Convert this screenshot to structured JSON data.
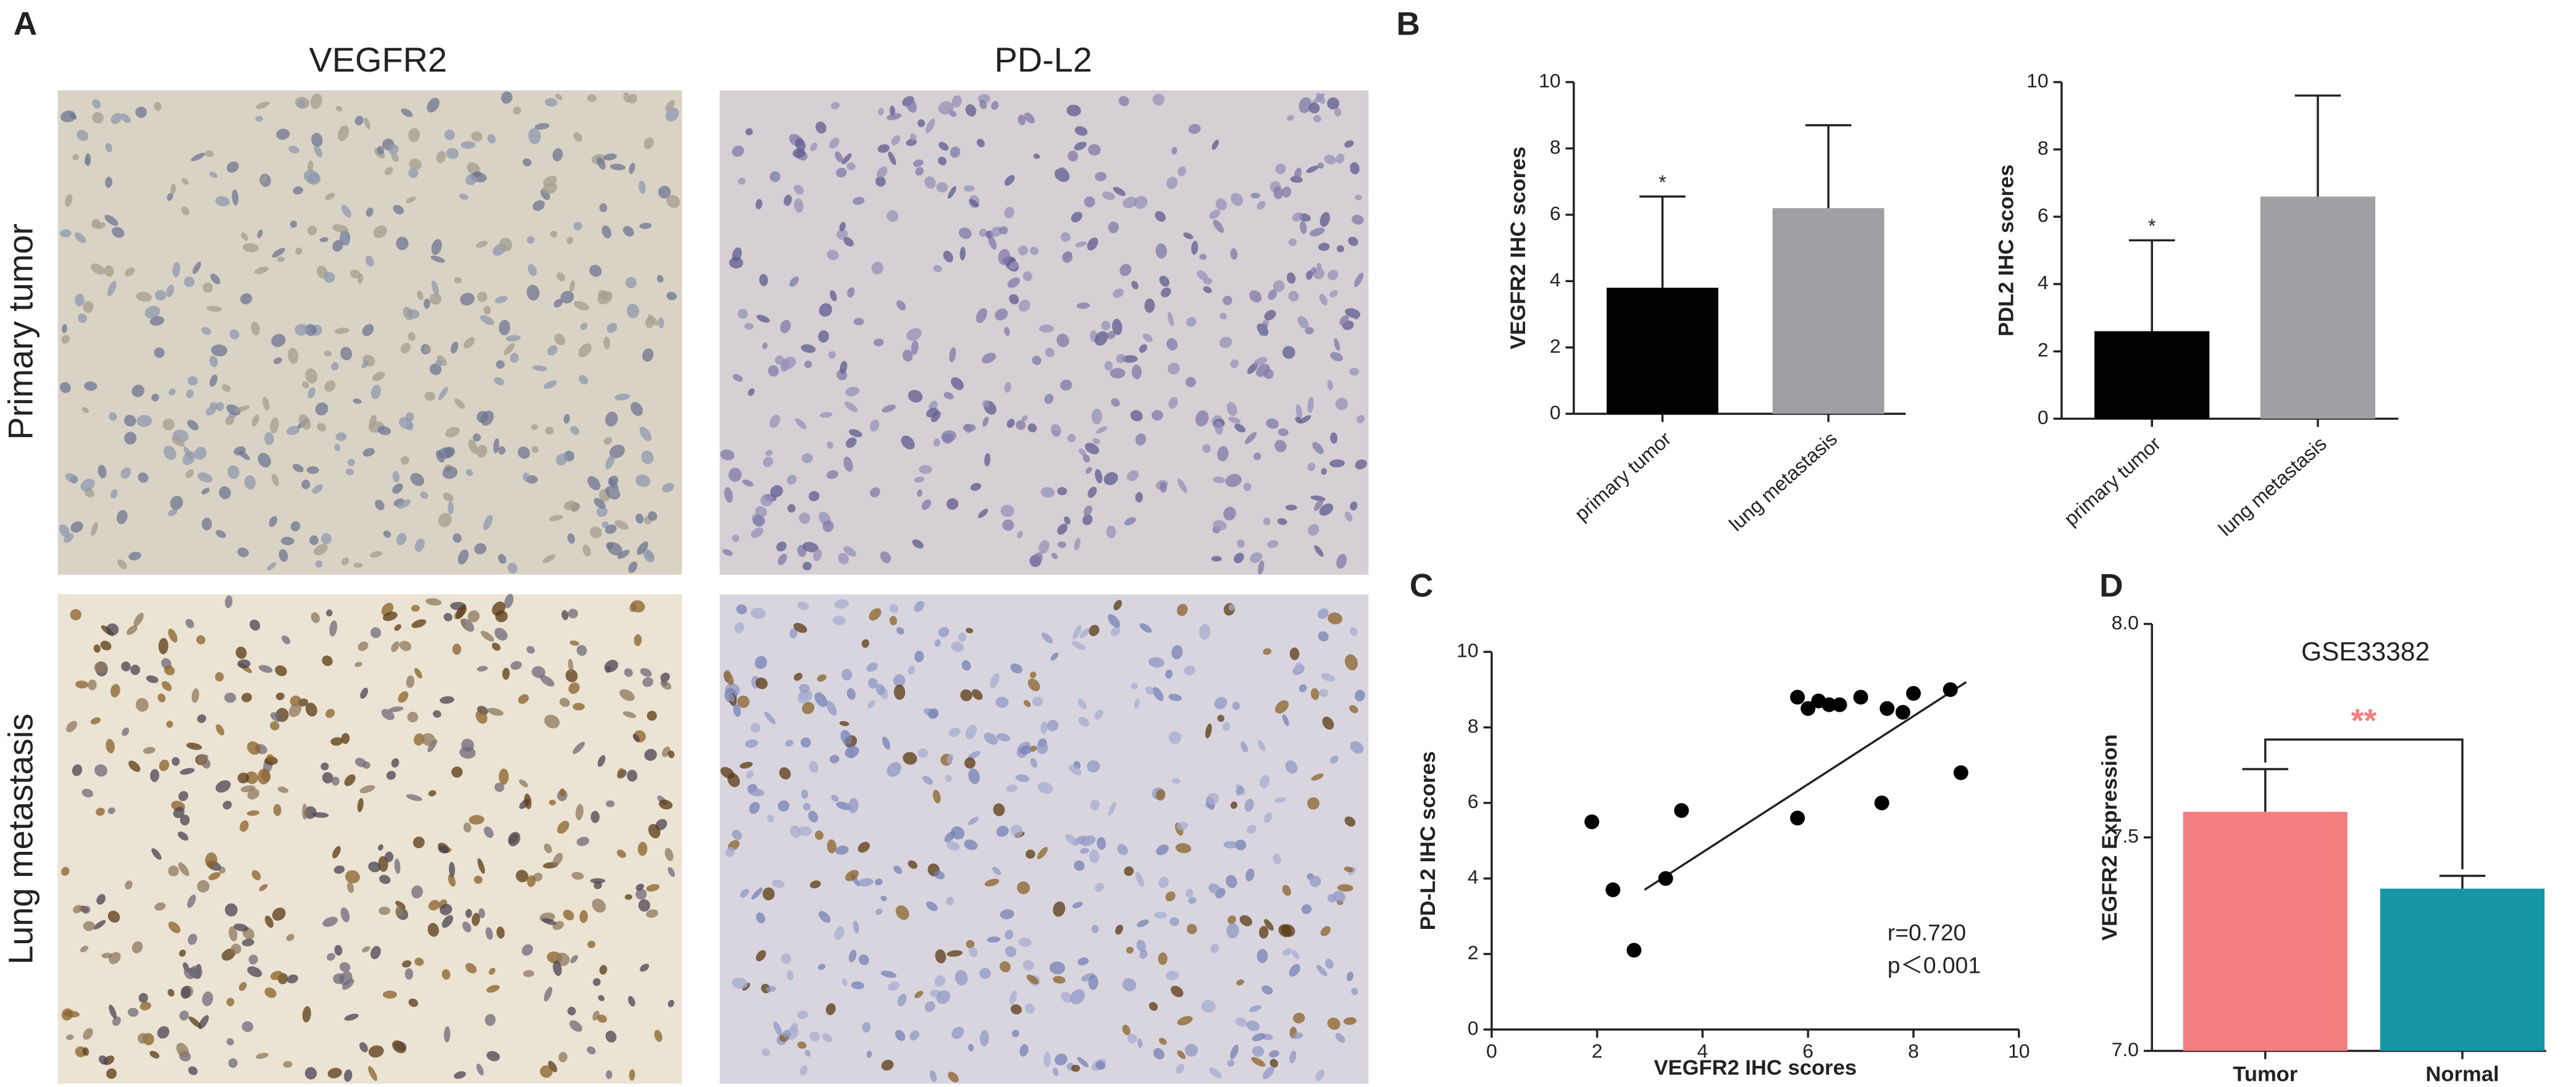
{
  "panel_labels": [
    "A",
    "B",
    "C",
    "D"
  ],
  "micrographs": {
    "columns": [
      "VEGFR2",
      "PD-L2"
    ],
    "rows": [
      "Primary tumor",
      "Lung metastasis"
    ]
  },
  "chart_data": [
    {
      "type": "bar",
      "y_label": "VEGFR2 IHC scores",
      "categories": [
        "primary tumor",
        "lung metastasis"
      ],
      "values": [
        3.8,
        6.2
      ],
      "errors": [
        2.75,
        2.5
      ],
      "colors": [
        "#000000",
        "#a0a0a4"
      ],
      "significance": [
        "*",
        null
      ],
      "ylim": [
        0,
        10
      ],
      "yticks": [
        0,
        2,
        4,
        6,
        8,
        10
      ]
    },
    {
      "type": "bar",
      "y_label": "PDL2 IHC scores",
      "categories": [
        "primary tumor",
        "lung metastasis"
      ],
      "values": [
        2.6,
        6.6
      ],
      "errors": [
        2.7,
        3.0
      ],
      "colors": [
        "#000000",
        "#a0a0a4"
      ],
      "significance": [
        "*",
        null
      ],
      "ylim": [
        0,
        10
      ],
      "yticks": [
        0,
        2,
        4,
        6,
        8,
        10
      ]
    },
    {
      "type": "scatter",
      "x_label": "VEGFR2 IHC scores",
      "y_label": "PD-L2 IHC scores",
      "x": [
        1.9,
        2.3,
        2.7,
        3.3,
        3.6,
        5.8,
        5.8,
        6.0,
        6.2,
        6.4,
        6.6,
        7.0,
        7.4,
        7.5,
        7.8,
        8.0,
        8.7,
        8.9
      ],
      "y": [
        5.5,
        3.7,
        2.1,
        4.0,
        5.8,
        5.6,
        8.8,
        8.5,
        8.7,
        8.6,
        8.6,
        8.8,
        6.0,
        8.5,
        8.4,
        8.9,
        9.0,
        6.8
      ],
      "color": "#000000",
      "fit_line": {
        "x": [
          2.9,
          9.0
        ],
        "y": [
          3.7,
          9.2
        ]
      },
      "annotations": [
        "r=0.720",
        "p＜0.001"
      ],
      "xlim": [
        0,
        10
      ],
      "xticks": [
        0,
        2,
        4,
        6,
        8,
        10
      ],
      "ylim": [
        0,
        10
      ],
      "yticks": [
        0,
        2,
        4,
        6,
        8,
        10
      ]
    },
    {
      "type": "bar",
      "title": "GSE33382",
      "y_label": "VEGFR2 Expression",
      "categories": [
        "Tumor",
        "Normal"
      ],
      "values": [
        7.56,
        7.38
      ],
      "errors": [
        0.1,
        0.03
      ],
      "colors": [
        "#f47e7f",
        "#1597a8"
      ],
      "significance": "**",
      "significance_color": "#f47e7f",
      "ylim": [
        7.0,
        8.0
      ],
      "yticks": [
        {
          "value": 7,
          "label": "7.0"
        },
        7.5,
        {
          "value": 8,
          "label": "8.0"
        }
      ]
    }
  ]
}
